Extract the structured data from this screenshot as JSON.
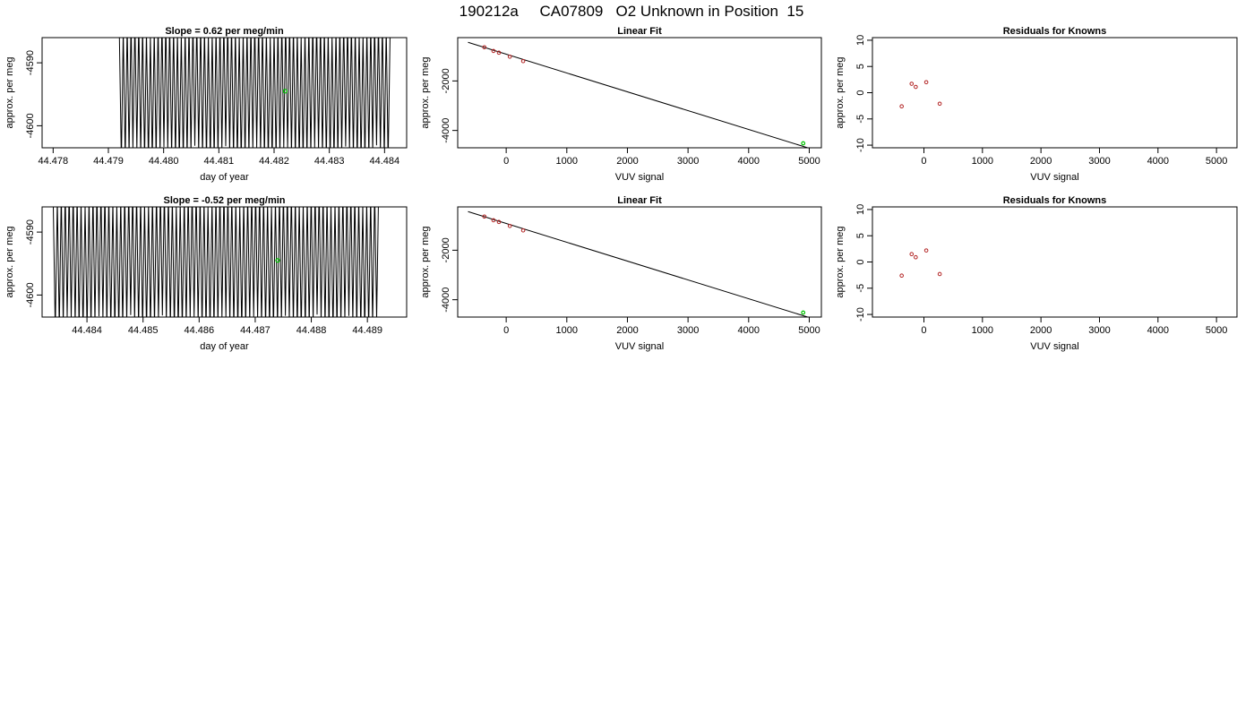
{
  "page_title": "190212a     CA07809   O2 Unknown in Position  15",
  "colors": {
    "axis": "#000000",
    "trace": "#000000",
    "known_points": "#b22222",
    "unknown_point": "#00c000"
  },
  "chart_data": [
    {
      "id": "p1",
      "type": "line",
      "title": "Slope =  0.62  per meg/min",
      "xlabel": "day of year",
      "ylabel": "approx. per meg",
      "xlim": [
        44.4778,
        44.4844
      ],
      "ylim": [
        -4603.5,
        -4586
      ],
      "xticks": [
        "44.478",
        "44.479",
        "44.480",
        "44.481",
        "44.482",
        "44.483",
        "44.484"
      ],
      "yticks": [
        "-4590",
        "-4600"
      ],
      "signal": {
        "x_start": 44.4792,
        "x_end": 44.4841,
        "center": -4594.5,
        "amplitude": 10.5,
        "cycles": 70
      },
      "highlight_point": {
        "x": 44.4822,
        "y": -4594.5
      }
    },
    {
      "id": "p2",
      "type": "scatter",
      "title": "Linear Fit",
      "xlabel": "VUV signal",
      "ylabel": "approx. per meg",
      "xlim": [
        -800,
        5200
      ],
      "ylim": [
        -4700,
        -250
      ],
      "xticks": [
        "0",
        "1000",
        "2000",
        "3000",
        "4000",
        "5000"
      ],
      "yticks": [
        "-2000",
        "-4000"
      ],
      "fit_line": {
        "x": [
          -630,
          5080
        ],
        "y": [
          -440,
          -4780
        ]
      },
      "knowns": [
        {
          "x": -360,
          "y": -640
        },
        {
          "x": -210,
          "y": -790
        },
        {
          "x": -120,
          "y": -860
        },
        {
          "x": 60,
          "y": -1020
        },
        {
          "x": 280,
          "y": -1200
        }
      ],
      "unknown": {
        "x": 4900,
        "y": -4520
      }
    },
    {
      "id": "p3",
      "type": "scatter",
      "title": "Residuals for Knowns",
      "xlabel": "VUV signal",
      "ylabel": "approx. per meg",
      "xlim": [
        -880,
        5350
      ],
      "ylim": [
        -10.5,
        10.5
      ],
      "xticks": [
        "0",
        "1000",
        "2000",
        "3000",
        "4000",
        "5000"
      ],
      "yticks": [
        "-10",
        "-5",
        "0",
        "5",
        "10"
      ],
      "points": [
        {
          "x": -380,
          "y": -2.6
        },
        {
          "x": -210,
          "y": 1.7
        },
        {
          "x": -140,
          "y": 1.1
        },
        {
          "x": 40,
          "y": 2.0
        },
        {
          "x": 270,
          "y": -2.1
        }
      ]
    },
    {
      "id": "p4",
      "type": "line",
      "title": "Slope =  -0.52  per meg/min",
      "xlabel": "day of year",
      "ylabel": "approx. per meg",
      "xlim": [
        44.4832,
        44.4897
      ],
      "ylim": [
        -4603.5,
        -4586
      ],
      "xticks": [
        "44.484",
        "44.485",
        "44.486",
        "44.487",
        "44.488",
        "44.489"
      ],
      "yticks": [
        "-4590",
        "-4600"
      ],
      "signal": {
        "x_start": 44.4834,
        "x_end": 44.4892,
        "center": -4594.5,
        "amplitude": 10.5,
        "cycles": 82
      },
      "highlight_point": {
        "x": 44.4874,
        "y": -4594.5
      }
    },
    {
      "id": "p5",
      "type": "scatter",
      "title": "Linear Fit",
      "xlabel": "VUV signal",
      "ylabel": "approx. per meg",
      "xlim": [
        -800,
        5200
      ],
      "ylim": [
        -4700,
        -250
      ],
      "xticks": [
        "0",
        "1000",
        "2000",
        "3000",
        "4000",
        "5000"
      ],
      "yticks": [
        "-2000",
        "-4000"
      ],
      "fit_line": {
        "x": [
          -630,
          5080
        ],
        "y": [
          -440,
          -4780
        ]
      },
      "knowns": [
        {
          "x": -360,
          "y": -640
        },
        {
          "x": -210,
          "y": -790
        },
        {
          "x": -120,
          "y": -860
        },
        {
          "x": 60,
          "y": -1020
        },
        {
          "x": 280,
          "y": -1200
        }
      ],
      "unknown": {
        "x": 4900,
        "y": -4520
      }
    },
    {
      "id": "p6",
      "type": "scatter",
      "title": "Residuals for Knowns",
      "xlabel": "VUV signal",
      "ylabel": "approx. per meg",
      "xlim": [
        -880,
        5350
      ],
      "ylim": [
        -10.5,
        10.5
      ],
      "xticks": [
        "0",
        "1000",
        "2000",
        "3000",
        "4000",
        "5000"
      ],
      "yticks": [
        "-10",
        "-5",
        "0",
        "5",
        "10"
      ],
      "points": [
        {
          "x": -380,
          "y": -2.6
        },
        {
          "x": -210,
          "y": 1.5
        },
        {
          "x": -140,
          "y": 0.9
        },
        {
          "x": 40,
          "y": 2.2
        },
        {
          "x": 270,
          "y": -2.3
        }
      ]
    }
  ]
}
